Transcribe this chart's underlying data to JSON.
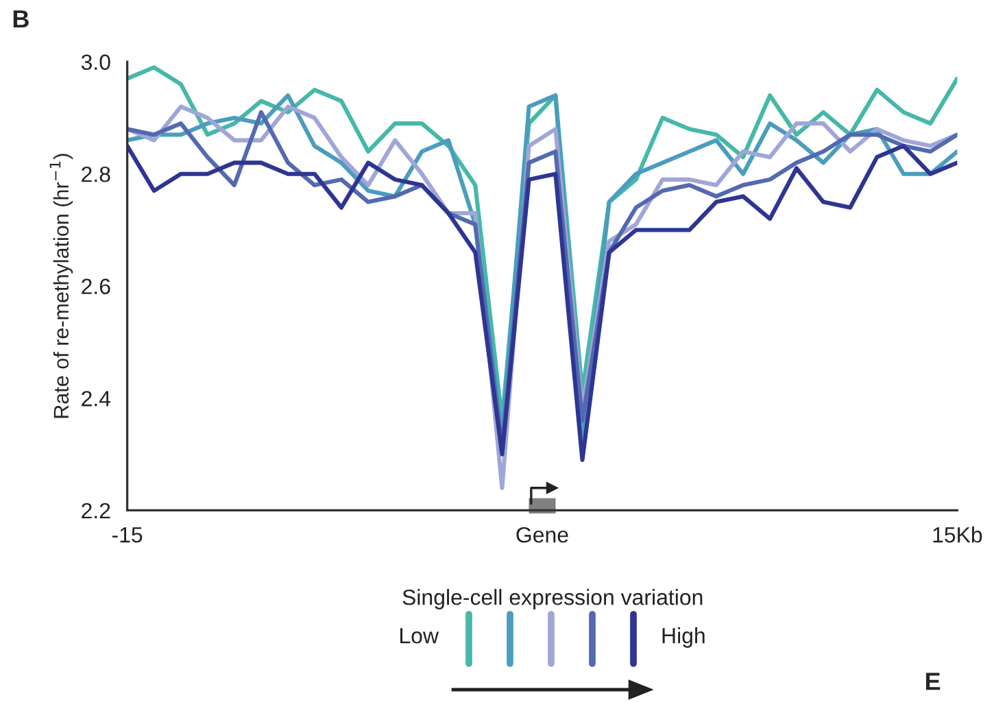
{
  "chart_data": {
    "type": "line",
    "ylabel": "Rate of re-methylation (hr$^{−1}$)",
    "legend_title": "Single-cell expression variation",
    "x": [
      -15,
      -14.03,
      -13.06,
      -12.1,
      -11.13,
      -10.16,
      -9.19,
      -8.23,
      -7.26,
      -6.29,
      -5.32,
      -4.35,
      -3.39,
      -2.42,
      -1.45,
      -0.48,
      0.48,
      1.45,
      2.42,
      3.39,
      4.35,
      5.32,
      6.29,
      7.26,
      8.23,
      9.19,
      10.16,
      11.13,
      12.1,
      13.06,
      14.03,
      15
    ],
    "series": [
      {
        "color": "#46b8a8",
        "values": [
          2.97,
          2.99,
          2.96,
          2.87,
          2.89,
          2.93,
          2.91,
          2.95,
          2.93,
          2.84,
          2.89,
          2.89,
          2.85,
          2.78,
          2.36,
          2.89,
          2.94,
          2.41,
          2.75,
          2.79,
          2.9,
          2.88,
          2.87,
          2.83,
          2.94,
          2.87,
          2.91,
          2.87,
          2.95,
          2.91,
          2.89,
          2.97
        ]
      },
      {
        "color": "#4a9dbd",
        "values": [
          2.86,
          2.87,
          2.87,
          2.89,
          2.9,
          2.89,
          2.94,
          2.85,
          2.82,
          2.77,
          2.76,
          2.84,
          2.86,
          2.71,
          2.33,
          2.92,
          2.94,
          2.33,
          2.75,
          2.8,
          2.82,
          2.84,
          2.86,
          2.8,
          2.89,
          2.86,
          2.82,
          2.87,
          2.88,
          2.8,
          2.8,
          2.84
        ]
      },
      {
        "color": "#a0a6d8",
        "values": [
          2.88,
          2.86,
          2.92,
          2.9,
          2.86,
          2.86,
          2.92,
          2.9,
          2.83,
          2.78,
          2.86,
          2.8,
          2.73,
          2.73,
          2.24,
          2.85,
          2.88,
          2.38,
          2.68,
          2.71,
          2.79,
          2.79,
          2.78,
          2.84,
          2.83,
          2.89,
          2.89,
          2.84,
          2.88,
          2.86,
          2.85,
          2.87
        ]
      },
      {
        "color": "#5369b0",
        "values": [
          2.88,
          2.87,
          2.89,
          2.83,
          2.78,
          2.91,
          2.82,
          2.78,
          2.79,
          2.75,
          2.76,
          2.78,
          2.73,
          2.71,
          2.31,
          2.82,
          2.84,
          2.36,
          2.66,
          2.74,
          2.77,
          2.78,
          2.76,
          2.78,
          2.79,
          2.82,
          2.84,
          2.87,
          2.87,
          2.85,
          2.84,
          2.87
        ]
      },
      {
        "color": "#2e3592",
        "values": [
          2.85,
          2.77,
          2.8,
          2.8,
          2.82,
          2.82,
          2.8,
          2.8,
          2.74,
          2.82,
          2.79,
          2.78,
          2.73,
          2.66,
          2.3,
          2.79,
          2.8,
          2.29,
          2.66,
          2.7,
          2.7,
          2.7,
          2.75,
          2.76,
          2.72,
          2.81,
          2.75,
          2.74,
          2.83,
          2.85,
          2.8,
          2.82
        ]
      }
    ],
    "xlim": [
      -15,
      15
    ],
    "xticks": [
      {
        "value": -15,
        "label": "-15"
      },
      {
        "value": 0,
        "label": "Gene"
      },
      {
        "value": 15,
        "label": "15Kb"
      }
    ],
    "ylim": [
      2.2,
      3.0
    ],
    "yticks": [
      2.2,
      2.4,
      2.6,
      2.8,
      {
        "value": 3.0,
        "label": "3.0"
      }
    ],
    "grid": false,
    "line_style": "solid",
    "annotations": [
      "B",
      "Low",
      "High",
      "E"
    ]
  }
}
